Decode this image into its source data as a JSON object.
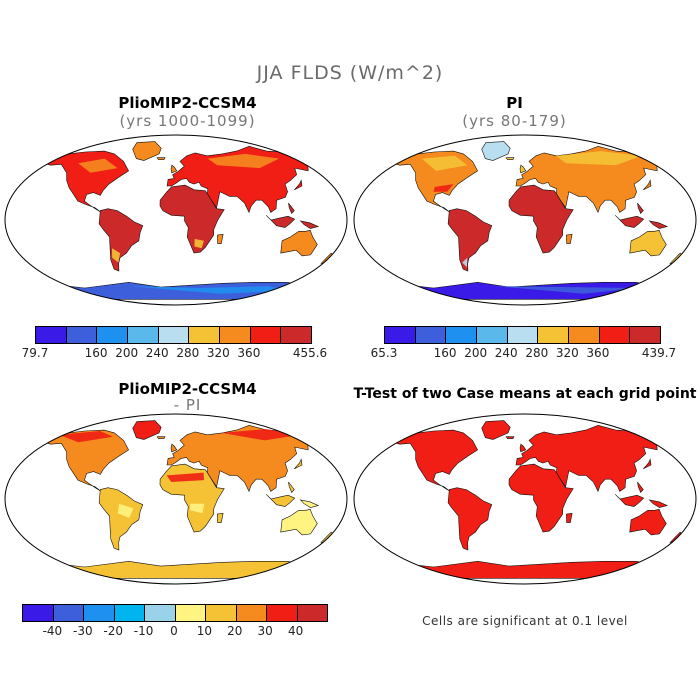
{
  "main_title": "JJA FLDS (W/m^2)",
  "panels": [
    {
      "title": "PlioMIP2-CCSM4",
      "subtitle": "(yrs 1000-1099)",
      "field": "plio"
    },
    {
      "title": "PI",
      "subtitle": "(yrs 80-179)",
      "field": "pi"
    },
    {
      "title": "PlioMIP2-CCSM4",
      "subtitle": "- PI",
      "field": "diff"
    },
    {
      "title": "T-Test of two Case means at each grid point",
      "subtitle": "",
      "field": "ttest"
    }
  ],
  "colorbars": [
    {
      "min_label": "79.7",
      "max_label": "455.6",
      "labels": [
        "160",
        "200",
        "240",
        "280",
        "320",
        "360"
      ],
      "colors": [
        "#3a1ae6",
        "#3d5fdc",
        "#1e90f0",
        "#5ab8ea",
        "#b8def0",
        "#f5c235",
        "#f58a1e",
        "#f01e14",
        "#cc2a2a"
      ]
    },
    {
      "min_label": "65.3",
      "max_label": "439.7",
      "labels": [
        "160",
        "200",
        "240",
        "280",
        "320",
        "360"
      ],
      "colors": [
        "#3a1ae6",
        "#3d5fdc",
        "#1e90f0",
        "#5ab8ea",
        "#b8def0",
        "#f5c235",
        "#f58a1e",
        "#f01e14",
        "#cc2a2a"
      ]
    },
    {
      "labels": [
        "-40",
        "-30",
        "-20",
        "-10",
        "0",
        "10",
        "20",
        "30",
        "40"
      ],
      "colors": [
        "#3a1ae6",
        "#3d5fdc",
        "#1e90f0",
        "#00b4f0",
        "#9ad2ea",
        "#fff382",
        "#f5c235",
        "#f58a1e",
        "#f01e14",
        "#cc2a2a"
      ]
    }
  ],
  "note": "Cells are significant at 0.1 level"
}
